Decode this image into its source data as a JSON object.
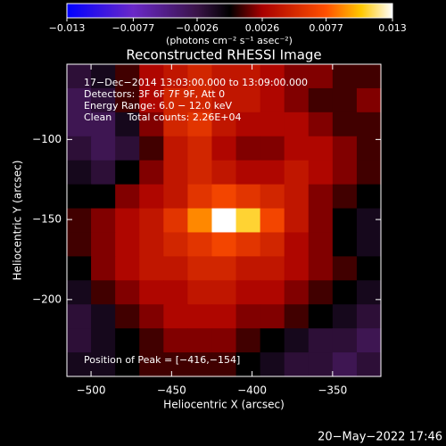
{
  "chart_data": {
    "type": "heatmap",
    "title": "Reconstructed RHESSI Image",
    "colorbar_label": "(photons cm⁻² s⁻¹ asec⁻²)",
    "colorbar_ticks": [
      {
        "value": -0.013,
        "label": "−0.013"
      },
      {
        "value": -0.0077,
        "label": "−0.0077"
      },
      {
        "value": -0.0026,
        "label": "−0.0026"
      },
      0.0026,
      0.0077,
      0.013
    ],
    "colormap": [
      {
        "value": -0.013,
        "color": "#0000ff"
      },
      {
        "value": -0.0077,
        "color": "#6a28c8"
      },
      {
        "value": -0.0026,
        "color": "#3a1448"
      },
      {
        "value": 0,
        "color": "#000000"
      },
      {
        "value": 0.0026,
        "color": "#a80000"
      },
      {
        "value": 0.0077,
        "color": "#ff5000"
      },
      {
        "value": 0.0105,
        "color": "#ffc800"
      },
      {
        "value": 0.013,
        "color": "#ffffff"
      }
    ],
    "annotations": [
      "17−Dec−2014 13:03:00.000 to 13:09:00.000",
      "Detectors: 3F 6F 7F 9F, Att 0",
      "Energy Range: 6.0 − 12.0 keV",
      "Clean     Total counts: 2.26E+04"
    ],
    "peak_label": "Position of Peak = [−416,−154]",
    "xlabel": "Heliocentric X (arcsec)",
    "ylabel": "Heliocentric Y (arcsec)",
    "footer": "20−May−2022 17:46",
    "xlim": [
      -515,
      -320
    ],
    "ylim": [
      -248,
      -53
    ],
    "xticks": [
      {
        "value": -500,
        "label": "−500"
      },
      {
        "value": -450,
        "label": "−450"
      },
      {
        "value": -400,
        "label": "−400"
      },
      {
        "value": -350,
        "label": "−350"
      }
    ],
    "yticks": [
      {
        "value": -100,
        "label": "−100"
      },
      {
        "value": -150,
        "label": "−150"
      },
      {
        "value": -200,
        "label": "−200"
      }
    ],
    "x": [
      -507.5,
      -492.5,
      -477.5,
      -462.5,
      -447.5,
      -432.5,
      -417.5,
      -402.5,
      -387.5,
      -372.5,
      -357.5,
      -342.5,
      -327.5
    ],
    "y": [
      -60.5,
      -75.5,
      -90.5,
      -105.5,
      -120.5,
      -135.5,
      -150.5,
      -165.5,
      -180.5,
      -195.5,
      -210.5,
      -225.5,
      -240.5
    ],
    "z": [
      [
        -0.002,
        -0.001,
        0.001,
        0.003,
        0.004,
        0.005,
        0.004,
        0.004,
        0.003,
        0.002,
        0.002,
        0.001,
        0.001
      ],
      [
        -0.003,
        -0.002,
        0.001,
        0.003,
        0.005,
        0.005,
        0.004,
        0.004,
        0.003,
        0.002,
        0.001,
        0.001,
        0.002
      ],
      [
        -0.003,
        -0.003,
        -0.001,
        0.002,
        0.005,
        0.006,
        0.004,
        0.003,
        0.003,
        0.003,
        0.002,
        0.001,
        0.001
      ],
      [
        -0.002,
        -0.003,
        -0.002,
        0.001,
        0.004,
        0.005,
        0.003,
        0.002,
        0.002,
        0.003,
        0.003,
        0.002,
        0.001
      ],
      [
        -0.001,
        -0.002,
        0,
        0.002,
        0.004,
        0.005,
        0.004,
        0.003,
        0.003,
        0.004,
        0.003,
        0.002,
        0.001
      ],
      [
        0,
        0,
        0.002,
        0.003,
        0.004,
        0.006,
        0.007,
        0.006,
        0.005,
        0.004,
        0.002,
        0.001,
        0
      ],
      [
        0.001,
        0.002,
        0.003,
        0.004,
        0.006,
        0.009,
        0.013,
        0.011,
        0.007,
        0.004,
        0.002,
        0,
        -0.001
      ],
      [
        0.001,
        0.002,
        0.003,
        0.004,
        0.005,
        0.006,
        0.007,
        0.006,
        0.005,
        0.003,
        0.002,
        0,
        -0.001
      ],
      [
        0,
        0.002,
        0.003,
        0.004,
        0.004,
        0.005,
        0.005,
        0.004,
        0.004,
        0.003,
        0.002,
        0.001,
        0
      ],
      [
        -0.001,
        0.001,
        0.002,
        0.003,
        0.003,
        0.004,
        0.004,
        0.003,
        0.003,
        0.002,
        0.001,
        0,
        -0.001
      ],
      [
        -0.002,
        -0.001,
        0.001,
        0.002,
        0.003,
        0.003,
        0.003,
        0.002,
        0.002,
        0.001,
        0,
        -0.001,
        -0.002
      ],
      [
        -0.002,
        -0.001,
        0,
        0.001,
        0.002,
        0.002,
        0.002,
        0.001,
        0,
        -0.001,
        -0.002,
        -0.002,
        -0.003
      ],
      [
        -0.001,
        -0.001,
        0,
        0.001,
        0.001,
        0.001,
        0.001,
        0,
        -0.001,
        -0.002,
        -0.002,
        -0.003,
        -0.002
      ]
    ]
  }
}
